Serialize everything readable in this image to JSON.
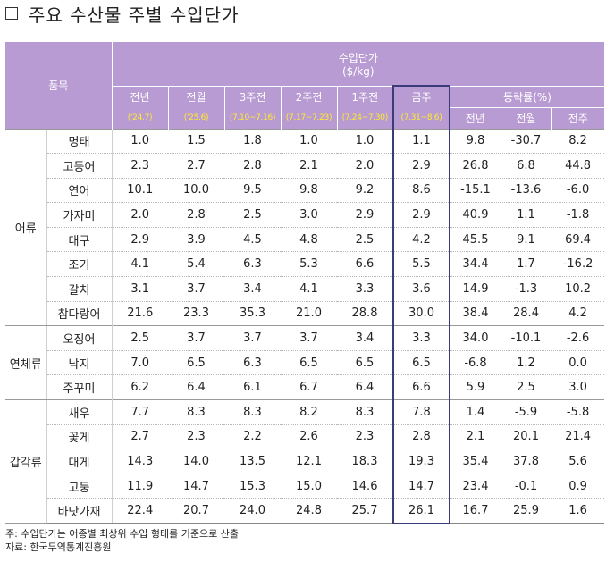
{
  "title": "주요 수산물 주별 수입단가",
  "header": {
    "item_label": "품목",
    "price_label": "수입단가",
    "price_unit": "($/kg)",
    "periods": [
      {
        "label": "전년",
        "date": "('24.7)"
      },
      {
        "label": "전월",
        "date": "('25.6)"
      },
      {
        "label": "3주전",
        "date": "(7.10~7.16)"
      },
      {
        "label": "2주전",
        "date": "(7.17~7.23)"
      },
      {
        "label": "1주전",
        "date": "(7.24~7.30)"
      },
      {
        "label": "금주",
        "date": "(7.31~8.6)"
      }
    ],
    "change_label": "등락률(%)",
    "change_cols": [
      "전년",
      "전월",
      "전주"
    ]
  },
  "groups": [
    {
      "name": "어류",
      "rows": [
        {
          "item": "명태",
          "values": [
            "1.0",
            "1.5",
            "1.8",
            "1.0",
            "1.0",
            "1.1"
          ],
          "changes": [
            "9.8",
            "-30.7",
            "8.2"
          ]
        },
        {
          "item": "고등어",
          "values": [
            "2.3",
            "2.7",
            "2.8",
            "2.1",
            "2.0",
            "2.9"
          ],
          "changes": [
            "26.8",
            "6.8",
            "44.8"
          ]
        },
        {
          "item": "연어",
          "values": [
            "10.1",
            "10.0",
            "9.5",
            "9.8",
            "9.2",
            "8.6"
          ],
          "changes": [
            "-15.1",
            "-13.6",
            "-6.0"
          ]
        },
        {
          "item": "가자미",
          "values": [
            "2.0",
            "2.8",
            "2.5",
            "3.0",
            "2.9",
            "2.9"
          ],
          "changes": [
            "40.9",
            "1.1",
            "-1.8"
          ]
        },
        {
          "item": "대구",
          "values": [
            "2.9",
            "3.9",
            "4.5",
            "4.8",
            "2.5",
            "4.2"
          ],
          "changes": [
            "45.5",
            "9.1",
            "69.4"
          ]
        },
        {
          "item": "조기",
          "values": [
            "4.1",
            "5.4",
            "6.3",
            "5.3",
            "6.6",
            "5.5"
          ],
          "changes": [
            "34.4",
            "1.7",
            "-16.2"
          ]
        },
        {
          "item": "갈치",
          "values": [
            "3.1",
            "3.7",
            "3.4",
            "4.1",
            "3.3",
            "3.6"
          ],
          "changes": [
            "14.9",
            "-1.3",
            "10.2"
          ]
        },
        {
          "item": "참다랑어",
          "values": [
            "21.6",
            "23.3",
            "35.3",
            "21.0",
            "28.8",
            "30.0"
          ],
          "changes": [
            "38.4",
            "28.4",
            "4.2"
          ]
        }
      ]
    },
    {
      "name": "연체류",
      "rows": [
        {
          "item": "오징어",
          "values": [
            "2.5",
            "3.7",
            "3.7",
            "3.7",
            "3.4",
            "3.3"
          ],
          "changes": [
            "34.0",
            "-10.1",
            "-2.6"
          ]
        },
        {
          "item": "낙지",
          "values": [
            "7.0",
            "6.5",
            "6.3",
            "6.5",
            "6.5",
            "6.5"
          ],
          "changes": [
            "-6.8",
            "1.2",
            "0.0"
          ]
        },
        {
          "item": "주꾸미",
          "values": [
            "6.2",
            "6.4",
            "6.1",
            "6.7",
            "6.4",
            "6.6"
          ],
          "changes": [
            "5.9",
            "2.5",
            "3.0"
          ]
        }
      ]
    },
    {
      "name": "갑각류",
      "rows": [
        {
          "item": "새우",
          "values": [
            "7.7",
            "8.3",
            "8.3",
            "8.2",
            "8.3",
            "7.8"
          ],
          "changes": [
            "1.4",
            "-5.9",
            "-5.8"
          ]
        },
        {
          "item": "꽃게",
          "values": [
            "2.7",
            "2.3",
            "2.2",
            "2.6",
            "2.3",
            "2.8"
          ],
          "changes": [
            "2.1",
            "20.1",
            "21.4"
          ]
        },
        {
          "item": "대게",
          "values": [
            "14.3",
            "14.0",
            "13.5",
            "12.1",
            "18.3",
            "19.3"
          ],
          "changes": [
            "35.4",
            "37.8",
            "5.6"
          ]
        },
        {
          "item": "고둥",
          "values": [
            "11.9",
            "14.7",
            "15.3",
            "15.0",
            "14.6",
            "14.7"
          ],
          "changes": [
            "23.4",
            "-0.1",
            "0.9"
          ]
        },
        {
          "item": "바닷가재",
          "values": [
            "22.4",
            "20.7",
            "24.0",
            "24.8",
            "25.7",
            "26.1"
          ],
          "changes": [
            "16.7",
            "25.9",
            "1.6"
          ]
        }
      ]
    }
  ],
  "notes": [
    "주: 수입단가는 어종별 최상위 수입 형태를 기준으로 산출",
    "자료: 한국무역통계진흥원"
  ],
  "colors": {
    "header_bg": "#b99bd3",
    "date_text": "#ffea2a",
    "highlight_border": "#3b3a7a"
  }
}
